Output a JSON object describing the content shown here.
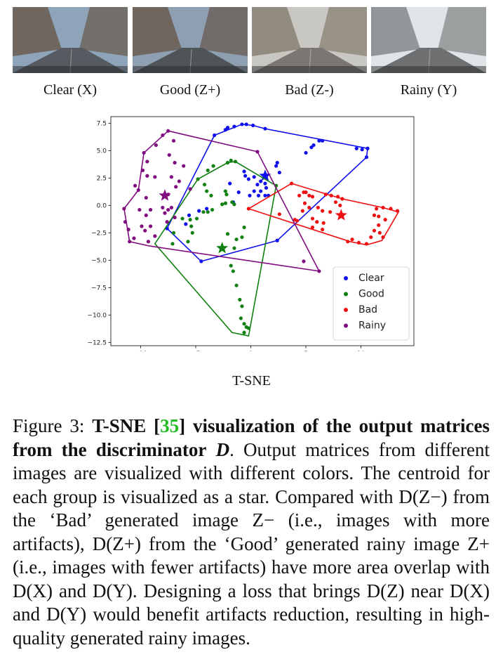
{
  "thumbnails": [
    {
      "label": "Clear (X)",
      "sky": "#8ea4b8",
      "road": "#555b60",
      "tint": "#6d6257"
    },
    {
      "label": "Good (Z+)",
      "sky": "#8d9fb0",
      "road": "#4f5459",
      "tint": "#6a5f57"
    },
    {
      "label": "Bad (Z-)",
      "sky": "#c9c7c2",
      "road": "#7a7672",
      "tint": "#8c8478"
    },
    {
      "label": "Rainy (Y)",
      "sky": "#dfe5e7",
      "road": "#6e7072",
      "tint": "#8b8d8f"
    }
  ],
  "chart_data": {
    "type": "scatter",
    "xlabel": "T-SNE",
    "ylabel": "",
    "xlim": [
      -12.7,
      14.8
    ],
    "ylim": [
      -12.8,
      8.1
    ],
    "xticks": [
      -10,
      -5,
      0,
      5,
      10
    ],
    "yticks": [
      7.5,
      5.0,
      2.5,
      0.0,
      -2.5,
      -5.0,
      -7.5,
      -10.0,
      -12.5
    ],
    "legend_position": "lower-right",
    "series": [
      {
        "name": "Clear",
        "color": "#1010ee",
        "centroid": [
          1.3,
          2.7
        ],
        "points": [
          [
            -3.3,
            6.4
          ],
          [
            -2.3,
            6.9
          ],
          [
            -2.1,
            7.1
          ],
          [
            -1.5,
            7.2
          ],
          [
            -0.8,
            7.4
          ],
          [
            -0.4,
            7.4
          ],
          [
            0.2,
            7.3
          ],
          [
            1.3,
            7.0
          ],
          [
            5.0,
            4.8
          ],
          [
            5.5,
            5.3
          ],
          [
            5.7,
            5.5
          ],
          [
            6.2,
            5.9
          ],
          [
            6.5,
            5.9
          ],
          [
            9.6,
            5.2
          ],
          [
            10.1,
            5.1
          ],
          [
            10.6,
            5.2
          ],
          [
            10.5,
            4.4
          ],
          [
            2.4,
            3.9
          ],
          [
            2.3,
            3.6
          ],
          [
            2.6,
            3.0
          ],
          [
            -0.6,
            3.1
          ],
          [
            -0.5,
            2.7
          ],
          [
            -0.2,
            2.4
          ],
          [
            0.3,
            2.6
          ],
          [
            0.6,
            1.9
          ],
          [
            0.9,
            2.2
          ],
          [
            1.3,
            2.0
          ],
          [
            1.4,
            1.6
          ],
          [
            0.9,
            1.3
          ],
          [
            0.3,
            1.3
          ],
          [
            0.7,
            0.9
          ],
          [
            1.3,
            0.9
          ],
          [
            1.6,
            0.9
          ],
          [
            -1.9,
            2.0
          ],
          [
            -1.1,
            1.2
          ],
          [
            -1.6,
            0.3
          ],
          [
            -0.1,
            0.9
          ],
          [
            -4.0,
            -0.3
          ],
          [
            -4.7,
            -0.5
          ],
          [
            -5.6,
            -0.9
          ],
          [
            -5.9,
            -1.7
          ],
          [
            -7.6,
            -2.1
          ],
          [
            -4.5,
            -5.1
          ],
          [
            2.4,
            -3.2
          ]
        ],
        "hull": [
          [
            -3.3,
            6.4
          ],
          [
            -0.8,
            7.4
          ],
          [
            0.2,
            7.3
          ],
          [
            1.3,
            7.0
          ],
          [
            10.6,
            5.2
          ],
          [
            10.5,
            4.4
          ],
          [
            2.4,
            -3.2
          ],
          [
            -4.5,
            -5.1
          ],
          [
            -7.6,
            -2.1
          ],
          [
            -3.3,
            6.4
          ]
        ]
      },
      {
        "name": "Good",
        "color": "#108010",
        "centroid": [
          -2.6,
          -3.9
        ],
        "points": [
          [
            -2.1,
            3.9
          ],
          [
            -1.8,
            4.1
          ],
          [
            -1.4,
            4.0
          ],
          [
            -3.4,
            3.6
          ],
          [
            -3.9,
            3.2
          ],
          [
            -4.8,
            2.4
          ],
          [
            -4.2,
            1.9
          ],
          [
            -4.0,
            1.3
          ],
          [
            -3.6,
            0.9
          ],
          [
            -2.3,
            1.3
          ],
          [
            -2.2,
            1.0
          ],
          [
            -2.3,
            0.2
          ],
          [
            -2.6,
            0.1
          ],
          [
            -1.7,
            0.3
          ],
          [
            -1.5,
            0.1
          ],
          [
            -3.5,
            -0.4
          ],
          [
            -3.9,
            -0.6
          ],
          [
            -4.3,
            -0.6
          ],
          [
            -5.5,
            -1.3
          ],
          [
            -5.4,
            -1.9
          ],
          [
            -5.3,
            -2.5
          ],
          [
            -6.2,
            -1.2
          ],
          [
            -4.9,
            -1.2
          ],
          [
            -7.0,
            -2.5
          ],
          [
            -7.1,
            -3.5
          ],
          [
            -5.7,
            -3.3
          ],
          [
            -2.1,
            -2.6
          ],
          [
            -1.3,
            -3.1
          ],
          [
            -1.5,
            -3.9
          ],
          [
            -0.8,
            -2.9
          ],
          [
            -0.6,
            -2.0
          ],
          [
            -1.8,
            -5.5
          ],
          [
            -1.6,
            -6.0
          ],
          [
            -1.3,
            -7.3
          ],
          [
            -1.0,
            -8.6
          ],
          [
            -0.8,
            -9.2
          ],
          [
            -0.9,
            -10.3
          ],
          [
            -0.6,
            -10.8
          ],
          [
            -0.4,
            -11.1
          ],
          [
            -0.6,
            -11.6
          ],
          [
            -0.2,
            -11.2
          ],
          [
            2.3,
            1.8
          ]
        ],
        "hull": [
          [
            -2.1,
            3.9
          ],
          [
            -1.4,
            4.0
          ],
          [
            2.3,
            1.8
          ],
          [
            -0.2,
            -11.9
          ],
          [
            -1.7,
            -11.6
          ],
          [
            -8.7,
            -3.5
          ],
          [
            -4.8,
            2.4
          ],
          [
            -2.1,
            3.9
          ]
        ]
      },
      {
        "name": "Bad",
        "color": "#ee1010",
        "centroid": [
          8.2,
          -0.9
        ],
        "points": [
          [
            3.7,
            2.0
          ],
          [
            5.0,
            1.2
          ],
          [
            5.3,
            0.9
          ],
          [
            5.6,
            0.8
          ],
          [
            4.4,
            0.9
          ],
          [
            4.8,
            1.2
          ],
          [
            6.8,
            1.0
          ],
          [
            7.3,
            0.9
          ],
          [
            7.9,
            0.8
          ],
          [
            8.3,
            0.6
          ],
          [
            7.7,
            0.3
          ],
          [
            8.1,
            0.0
          ],
          [
            5.3,
            -0.2
          ],
          [
            4.7,
            -0.5
          ],
          [
            4.9,
            0.2
          ],
          [
            6.1,
            -0.2
          ],
          [
            6.5,
            -0.5
          ],
          [
            7.2,
            -0.6
          ],
          [
            2.6,
            -0.8
          ],
          [
            4.2,
            -1.4
          ],
          [
            5.6,
            -1.2
          ],
          [
            6.0,
            -1.5
          ],
          [
            6.6,
            -1.6
          ],
          [
            6.5,
            -2.2
          ],
          [
            5.6,
            -2.0
          ],
          [
            4.0,
            -1.3
          ],
          [
            12.0,
            -0.2
          ],
          [
            12.7,
            -0.3
          ],
          [
            13.3,
            -0.5
          ],
          [
            11.4,
            -0.3
          ],
          [
            11.2,
            -0.9
          ],
          [
            11.6,
            -1.0
          ],
          [
            12.2,
            -1.3
          ],
          [
            11.6,
            -1.8
          ],
          [
            11.2,
            -2.3
          ],
          [
            11.7,
            -2.5
          ],
          [
            12.0,
            -2.9
          ],
          [
            10.9,
            -2.9
          ],
          [
            10.5,
            -3.5
          ],
          [
            9.8,
            -3.4
          ],
          [
            9.2,
            -3.1
          ],
          [
            8.8,
            -3.3
          ],
          [
            -0.2,
            -0.3
          ]
        ],
        "hull": [
          [
            3.7,
            2.0
          ],
          [
            8.3,
            0.6
          ],
          [
            12.0,
            -0.2
          ],
          [
            13.4,
            -0.6
          ],
          [
            11.9,
            -3.2
          ],
          [
            10.5,
            -3.6
          ],
          [
            9.0,
            -3.3
          ],
          [
            -0.2,
            -0.3
          ],
          [
            3.7,
            2.0
          ]
        ]
      },
      {
        "name": "Rainy",
        "color": "#800c80",
        "centroid": [
          -7.8,
          0.9
        ],
        "points": [
          [
            -7.5,
            6.8
          ],
          [
            -8.0,
            6.4
          ],
          [
            -7.0,
            5.9
          ],
          [
            -8.6,
            5.5
          ],
          [
            -9.7,
            4.8
          ],
          [
            -9.4,
            4.0
          ],
          [
            -7.4,
            4.6
          ],
          [
            -6.9,
            3.9
          ],
          [
            -6.1,
            3.6
          ],
          [
            -9.8,
            3.2
          ],
          [
            -9.4,
            2.7
          ],
          [
            -10.5,
            1.8
          ],
          [
            -10.2,
            1.4
          ],
          [
            -8.7,
            2.6
          ],
          [
            -7.2,
            2.6
          ],
          [
            -6.5,
            2.2
          ],
          [
            -5.5,
            1.5
          ],
          [
            -6.8,
            1.7
          ],
          [
            -7.5,
            1.0
          ],
          [
            -9.5,
            0.7
          ],
          [
            -10.1,
            -0.4
          ],
          [
            -9.5,
            -0.9
          ],
          [
            -9.1,
            -0.4
          ],
          [
            -8.0,
            -0.2
          ],
          [
            -7.5,
            -0.4
          ],
          [
            -7.2,
            -0.2
          ],
          [
            -7.8,
            -0.7
          ],
          [
            -7.6,
            -1.5
          ],
          [
            -6.9,
            -1.1
          ],
          [
            -9.9,
            -1.9
          ],
          [
            -9.6,
            -2.3
          ],
          [
            -9.1,
            -1.9
          ],
          [
            -8.7,
            -2.8
          ],
          [
            -9.3,
            -3.3
          ],
          [
            -10.6,
            -3.0
          ],
          [
            -11.0,
            -3.3
          ],
          [
            -11.1,
            -2.2
          ],
          [
            -11.4,
            -1.5
          ],
          [
            -11.5,
            -0.3
          ],
          [
            4.8,
            -5.1
          ],
          [
            6.2,
            -6.0
          ],
          [
            0.6,
            4.9
          ]
        ],
        "hull": [
          [
            -7.5,
            6.8
          ],
          [
            0.6,
            4.9
          ],
          [
            6.2,
            -6.0
          ],
          [
            -9.2,
            -3.7
          ],
          [
            -11.0,
            -3.3
          ],
          [
            -11.5,
            -0.3
          ],
          [
            -10.2,
            1.4
          ],
          [
            -9.7,
            4.8
          ],
          [
            -7.5,
            6.8
          ]
        ]
      }
    ]
  },
  "caption": {
    "fig_label": "Figure 3:",
    "bold_a": "T-SNE [",
    "ref": "35",
    "bold_b": "] visualization of the output matrices from the discriminator",
    "bold_var": "D",
    "rest": ". Output matrices from different images are visualized with different colors. The centroid for each group is visualized as a star. Compared with D(Z−) from the ‘Bad’ generated image Z− (i.e., images with more artifacts), D(Z+) from the ‘Good’ generated rainy image Z+ (i.e., images with fewer artifacts) have more area overlap with D(X) and D(Y). Designing a loss that brings D(Z) near D(X) and D(Y) would benefit artifacts reduction, resulting in high-quality generated rainy images."
  }
}
